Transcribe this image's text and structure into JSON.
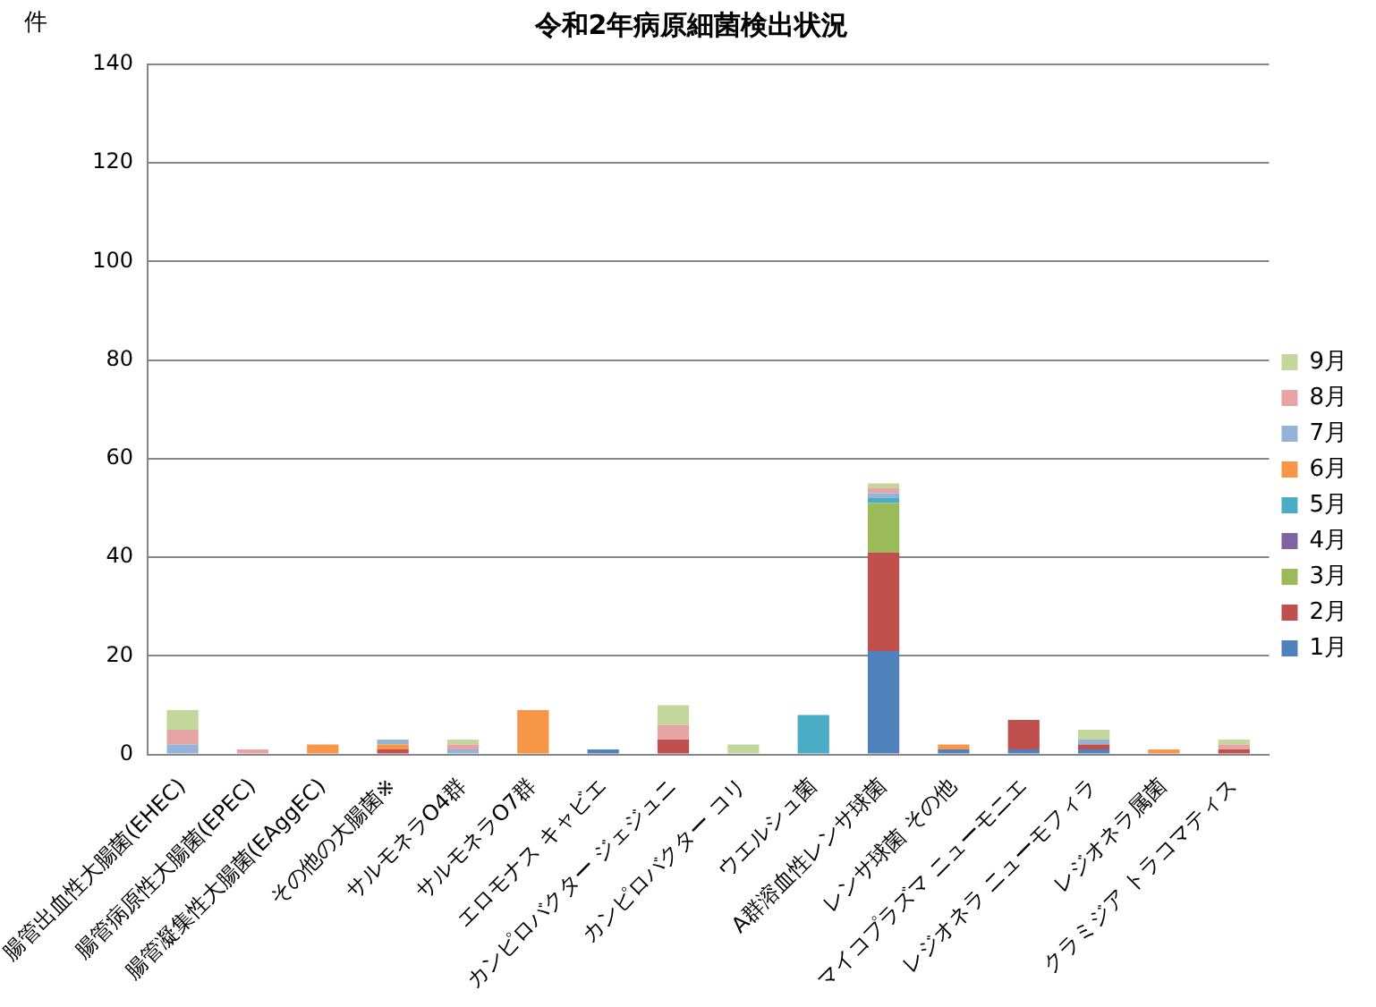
{
  "chart_data": {
    "type": "bar",
    "title": "令和2年病原細菌検出状況",
    "ylabel": "件",
    "categories": [
      "腸管出血性大腸菌(EHEC)",
      "腸管病原性大腸菌(EPEC)",
      "腸管凝集性大腸菌(EAggEC)",
      "その他の大腸菌※",
      "サルモネラO4群",
      "サルモネラO7群",
      "エロモナス キャビエ",
      "カンピロバクター ジェジュニ",
      "カンピロバクター コリ",
      "ウエルシュ菌",
      "A群溶血性レンサ球菌",
      "レンサ球菌 その他",
      "マイコプラズマ ニューモニエ",
      "レジオネラ ニューモフィラ",
      "レジオネラ属菌",
      "クラミジア トラコマティス"
    ],
    "stacked": true,
    "series": [
      {
        "name": "1月",
        "color": "#4f81bd",
        "values": [
          null,
          null,
          null,
          null,
          null,
          null,
          1,
          null,
          null,
          null,
          21,
          1,
          1,
          1,
          null,
          null
        ]
      },
      {
        "name": "2月",
        "color": "#c0504d",
        "values": [
          null,
          null,
          null,
          1,
          null,
          null,
          null,
          3,
          null,
          null,
          20,
          null,
          6,
          1,
          null,
          1
        ]
      },
      {
        "name": "3月",
        "color": "#9bbb59",
        "values": [
          null,
          null,
          null,
          null,
          null,
          null,
          null,
          null,
          null,
          null,
          10,
          null,
          null,
          null,
          null,
          null
        ]
      },
      {
        "name": "4月",
        "color": "#8064a2",
        "values": [
          null,
          null,
          null,
          null,
          null,
          null,
          null,
          null,
          null,
          null,
          null,
          null,
          null,
          null,
          null,
          null
        ]
      },
      {
        "name": "5月",
        "color": "#4bacc6",
        "values": [
          null,
          null,
          null,
          null,
          null,
          null,
          null,
          null,
          null,
          8,
          1,
          null,
          null,
          null,
          null,
          null
        ]
      },
      {
        "name": "6月",
        "color": "#f79646",
        "values": [
          null,
          null,
          2,
          1,
          null,
          9,
          null,
          null,
          null,
          null,
          null,
          1,
          null,
          null,
          1,
          null
        ]
      },
      {
        "name": "7月",
        "color": "#95b3d7",
        "values": [
          2,
          null,
          null,
          1,
          1,
          null,
          null,
          null,
          null,
          null,
          1,
          null,
          null,
          1,
          null,
          null
        ]
      },
      {
        "name": "8月",
        "color": "#e6a5a4",
        "values": [
          3,
          1,
          null,
          null,
          1,
          null,
          null,
          3,
          null,
          null,
          1,
          null,
          null,
          null,
          null,
          1
        ]
      },
      {
        "name": "9月",
        "color": "#c3d69b",
        "values": [
          4,
          null,
          null,
          null,
          1,
          null,
          null,
          4,
          2,
          null,
          1,
          null,
          null,
          2,
          null,
          1
        ]
      }
    ],
    "ylim": [
      0,
      140
    ],
    "yticks": [
      0,
      20,
      40,
      60,
      80,
      100,
      120,
      140
    ],
    "grid": "y",
    "legend": "right"
  }
}
